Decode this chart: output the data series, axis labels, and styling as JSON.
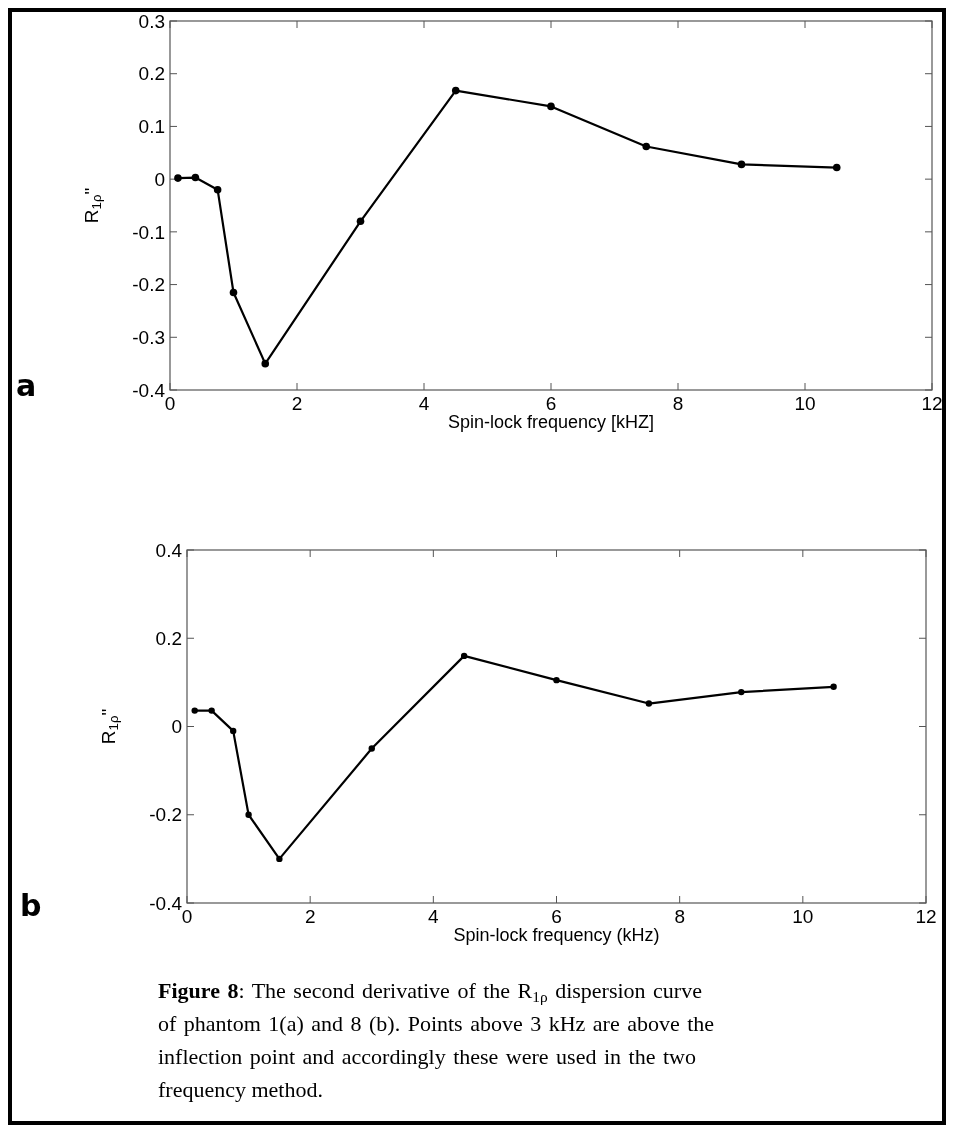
{
  "chart_data": [
    {
      "type": "line",
      "xlabel": "Spin-lock frequency [kHZ]",
      "ylabel": "R$_{1ρ}$\"",
      "xlim": [
        0,
        12
      ],
      "xticks": [
        0,
        2,
        4,
        6,
        8,
        10,
        12
      ],
      "ylim": [
        -0.4,
        0.3
      ],
      "yticks": [
        -0.4,
        -0.3,
        -0.2,
        -0.1,
        0,
        0.1,
        0.2,
        0.3
      ],
      "marker": "circle",
      "grid": false,
      "annotations": [
        "a"
      ],
      "series": [
        {
          "color": "#000000",
          "x": [
            0.125,
            0.4,
            0.75,
            1,
            1.5,
            3,
            4.5,
            6,
            7.5,
            9,
            10.5
          ],
          "values": [
            0.002,
            0.003,
            -0.02,
            -0.215,
            -0.35,
            -0.08,
            0.168,
            0.138,
            0.062,
            0.028,
            0.022
          ]
        }
      ]
    },
    {
      "type": "line",
      "xlabel": "Spin-lock frequency (kHz)",
      "ylabel": "R$_{1ρ}$\"",
      "xlim": [
        0,
        12
      ],
      "xticks": [
        0,
        2,
        4,
        6,
        8,
        10,
        12
      ],
      "ylim": [
        -0.4,
        0.4
      ],
      "yticks": [
        -0.4,
        -0.2,
        0,
        0.2,
        0.4
      ],
      "marker": "circle",
      "grid": false,
      "annotations": [
        "b",
        "Figure 8: The second derivative of the R$_{1ρ}$ dispersion curve of phantom 1(a) and 8 (b). Points above 3 kHz are above the inflection point and accordingly these were used in the two frequency method."
      ],
      "series": [
        {
          "color": "#000000",
          "x": [
            0.125,
            0.4,
            0.75,
            1,
            1.5,
            3,
            4.5,
            6,
            7.5,
            9,
            10.5
          ],
          "values": [
            0.036,
            0.036,
            -0.01,
            -0.2,
            -0.3,
            -0.05,
            0.16,
            0.105,
            0.052,
            0.078,
            0.09
          ]
        }
      ]
    }
  ]
}
